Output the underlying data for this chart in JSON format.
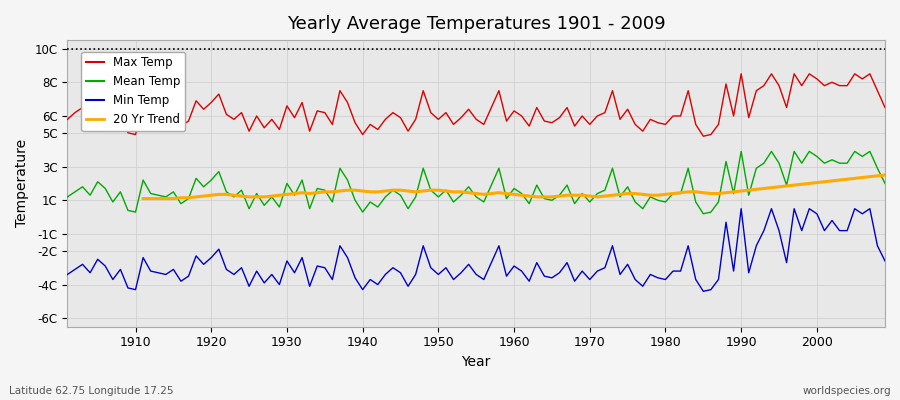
{
  "title": "Yearly Average Temperatures 1901 - 2009",
  "xlabel": "Year",
  "ylabel": "Temperature",
  "subtitle_left": "Latitude 62.75 Longitude 17.25",
  "subtitle_right": "worldspecies.org",
  "ylim": [
    -6.5,
    10.5
  ],
  "xlim": [
    1901,
    2009
  ],
  "yticks": [
    -6,
    -4,
    -2,
    -1,
    1,
    3,
    5,
    6,
    8,
    10
  ],
  "ytick_labels": [
    "-6C",
    "-4C",
    "-2C",
    "-1C",
    "1C",
    "3C",
    "5C",
    "6C",
    "8C",
    "10C"
  ],
  "xticks": [
    1910,
    1920,
    1930,
    1940,
    1950,
    1960,
    1970,
    1980,
    1990,
    2000
  ],
  "max_temp_color": "#dd0000",
  "mean_temp_color": "#00aa00",
  "min_temp_color": "#0000cc",
  "trend_color": "#ffaa00",
  "legend_labels": [
    "Max Temp",
    "Mean Temp",
    "Min Temp",
    "20 Yr Trend"
  ],
  "dotted_line_y": 10,
  "years": [
    1901,
    1902,
    1903,
    1904,
    1905,
    1906,
    1907,
    1908,
    1909,
    1910,
    1911,
    1912,
    1913,
    1914,
    1915,
    1916,
    1917,
    1918,
    1919,
    1920,
    1921,
    1922,
    1923,
    1924,
    1925,
    1926,
    1927,
    1928,
    1929,
    1930,
    1931,
    1932,
    1933,
    1934,
    1935,
    1936,
    1937,
    1938,
    1939,
    1940,
    1941,
    1942,
    1943,
    1944,
    1945,
    1946,
    1947,
    1948,
    1949,
    1950,
    1951,
    1952,
    1953,
    1954,
    1955,
    1956,
    1957,
    1958,
    1959,
    1960,
    1961,
    1962,
    1963,
    1964,
    1965,
    1966,
    1967,
    1968,
    1969,
    1970,
    1971,
    1972,
    1973,
    1974,
    1975,
    1976,
    1977,
    1978,
    1979,
    1980,
    1981,
    1982,
    1983,
    1984,
    1985,
    1986,
    1987,
    1988,
    1989,
    1990,
    1991,
    1992,
    1993,
    1994,
    1995,
    1996,
    1997,
    1998,
    1999,
    2000,
    2001,
    2002,
    2003,
    2004,
    2005,
    2006,
    2007,
    2008,
    2009
  ],
  "max_temp": [
    5.8,
    6.2,
    6.5,
    5.9,
    6.8,
    6.3,
    5.5,
    6.1,
    5.0,
    4.9,
    6.7,
    6.0,
    5.9,
    5.8,
    6.1,
    5.4,
    5.7,
    6.9,
    6.4,
    6.8,
    7.3,
    6.1,
    5.8,
    6.2,
    5.1,
    6.0,
    5.3,
    5.8,
    5.2,
    6.6,
    5.9,
    6.8,
    5.1,
    6.3,
    6.2,
    5.5,
    7.5,
    6.8,
    5.6,
    4.9,
    5.5,
    5.2,
    5.8,
    6.2,
    5.9,
    5.1,
    5.8,
    7.5,
    6.2,
    5.8,
    6.2,
    5.5,
    5.9,
    6.4,
    5.8,
    5.5,
    6.5,
    7.5,
    5.7,
    6.3,
    6.0,
    5.4,
    6.5,
    5.7,
    5.6,
    5.9,
    6.5,
    5.4,
    6.0,
    5.5,
    6.0,
    6.2,
    7.5,
    5.8,
    6.4,
    5.5,
    5.1,
    5.8,
    5.6,
    5.5,
    6.0,
    6.0,
    7.5,
    5.5,
    4.8,
    4.9,
    5.5,
    7.9,
    6.0,
    8.5,
    5.9,
    7.5,
    7.8,
    8.5,
    7.8,
    6.5,
    8.5,
    7.8,
    8.5,
    8.2,
    7.8,
    8.0,
    7.8,
    7.8,
    8.5,
    8.2,
    8.5,
    7.5,
    6.5
  ],
  "mean_temp": [
    1.2,
    1.5,
    1.8,
    1.3,
    2.1,
    1.7,
    0.9,
    1.5,
    0.4,
    0.3,
    2.2,
    1.4,
    1.3,
    1.2,
    1.5,
    0.8,
    1.1,
    2.3,
    1.8,
    2.2,
    2.7,
    1.5,
    1.2,
    1.6,
    0.5,
    1.4,
    0.7,
    1.2,
    0.6,
    2.0,
    1.3,
    2.2,
    0.5,
    1.7,
    1.6,
    0.9,
    2.9,
    2.2,
    1.0,
    0.3,
    0.9,
    0.6,
    1.2,
    1.6,
    1.3,
    0.5,
    1.2,
    2.9,
    1.6,
    1.2,
    1.6,
    0.9,
    1.3,
    1.8,
    1.2,
    0.9,
    1.9,
    2.9,
    1.1,
    1.7,
    1.4,
    0.8,
    1.9,
    1.1,
    1.0,
    1.3,
    1.9,
    0.8,
    1.4,
    0.9,
    1.4,
    1.6,
    2.9,
    1.2,
    1.8,
    0.9,
    0.5,
    1.2,
    1.0,
    0.9,
    1.4,
    1.4,
    2.9,
    0.9,
    0.2,
    0.3,
    0.9,
    3.3,
    1.4,
    3.9,
    1.3,
    2.9,
    3.2,
    3.9,
    3.2,
    1.9,
    3.9,
    3.2,
    3.9,
    3.6,
    3.2,
    3.4,
    3.2,
    3.2,
    3.9,
    3.6,
    3.9,
    2.9,
    2.0
  ],
  "min_temp": [
    -3.4,
    -3.1,
    -2.8,
    -3.3,
    -2.5,
    -2.9,
    -3.7,
    -3.1,
    -4.2,
    -4.3,
    -2.4,
    -3.2,
    -3.3,
    -3.4,
    -3.1,
    -3.8,
    -3.5,
    -2.3,
    -2.8,
    -2.4,
    -1.9,
    -3.1,
    -3.4,
    -3.0,
    -4.1,
    -3.2,
    -3.9,
    -3.4,
    -4.0,
    -2.6,
    -3.3,
    -2.4,
    -4.1,
    -2.9,
    -3.0,
    -3.7,
    -1.7,
    -2.4,
    -3.6,
    -4.3,
    -3.7,
    -4.0,
    -3.4,
    -3.0,
    -3.3,
    -4.1,
    -3.4,
    -1.7,
    -3.0,
    -3.4,
    -3.0,
    -3.7,
    -3.3,
    -2.8,
    -3.4,
    -3.7,
    -2.7,
    -1.7,
    -3.5,
    -2.9,
    -3.2,
    -3.8,
    -2.7,
    -3.5,
    -3.6,
    -3.3,
    -2.7,
    -3.8,
    -3.2,
    -3.7,
    -3.2,
    -3.0,
    -1.7,
    -3.4,
    -2.8,
    -3.7,
    -4.1,
    -3.4,
    -3.6,
    -3.7,
    -3.2,
    -3.2,
    -1.7,
    -3.7,
    -4.4,
    -4.3,
    -3.7,
    -0.3,
    -3.2,
    0.5,
    -3.3,
    -1.7,
    -0.8,
    0.5,
    -0.8,
    -2.7,
    0.5,
    -0.8,
    0.5,
    0.2,
    -0.8,
    -0.2,
    -0.8,
    -0.8,
    0.5,
    0.2,
    0.5,
    -1.7,
    -2.6
  ],
  "trend_years": [
    1911,
    1912,
    1913,
    1914,
    1915,
    1916,
    1917,
    1918,
    1919,
    1920,
    1921,
    1922,
    1923,
    1924,
    1925,
    1926,
    1927,
    1928,
    1929,
    1930,
    1931,
    1932,
    1933,
    1934,
    1935,
    1936,
    1937,
    1938,
    1939,
    1940,
    1941,
    1942,
    1943,
    1944,
    1945,
    1946,
    1947,
    1948,
    1949,
    1950,
    1951,
    1952,
    1953,
    1954,
    1955,
    1956,
    1957,
    1958,
    1959,
    1960,
    1961,
    1962,
    1963,
    1964,
    1965,
    1966,
    1967,
    1968,
    1969,
    1970,
    1971,
    1972,
    1973,
    1974,
    1975,
    1976,
    1977,
    1978,
    1979,
    1980,
    1981,
    1982,
    1983,
    1984,
    1985,
    1986,
    1987,
    1988,
    1989,
    1990,
    1991,
    1992,
    1993,
    1994,
    1995,
    1996,
    1997,
    1998,
    1999,
    2000,
    2001,
    2002,
    2003,
    2004,
    2005,
    2006,
    2007,
    2008,
    2009
  ],
  "trend_vals": [
    1.1,
    1.1,
    1.1,
    1.1,
    1.1,
    1.15,
    1.15,
    1.2,
    1.25,
    1.3,
    1.35,
    1.35,
    1.3,
    1.25,
    1.2,
    1.2,
    1.2,
    1.25,
    1.3,
    1.35,
    1.4,
    1.45,
    1.4,
    1.45,
    1.5,
    1.5,
    1.55,
    1.6,
    1.6,
    1.55,
    1.5,
    1.5,
    1.55,
    1.6,
    1.6,
    1.55,
    1.5,
    1.55,
    1.6,
    1.6,
    1.55,
    1.5,
    1.5,
    1.45,
    1.4,
    1.35,
    1.4,
    1.45,
    1.4,
    1.35,
    1.3,
    1.25,
    1.2,
    1.2,
    1.2,
    1.25,
    1.3,
    1.3,
    1.3,
    1.25,
    1.2,
    1.25,
    1.3,
    1.35,
    1.4,
    1.4,
    1.35,
    1.3,
    1.3,
    1.35,
    1.4,
    1.45,
    1.5,
    1.5,
    1.45,
    1.4,
    1.4,
    1.45,
    1.5,
    1.55,
    1.6,
    1.65,
    1.7,
    1.75,
    1.8,
    1.85,
    1.9,
    1.95,
    2.0,
    2.05,
    2.1,
    2.15,
    2.2,
    2.25,
    2.3,
    2.35,
    2.4,
    2.45,
    2.5
  ]
}
